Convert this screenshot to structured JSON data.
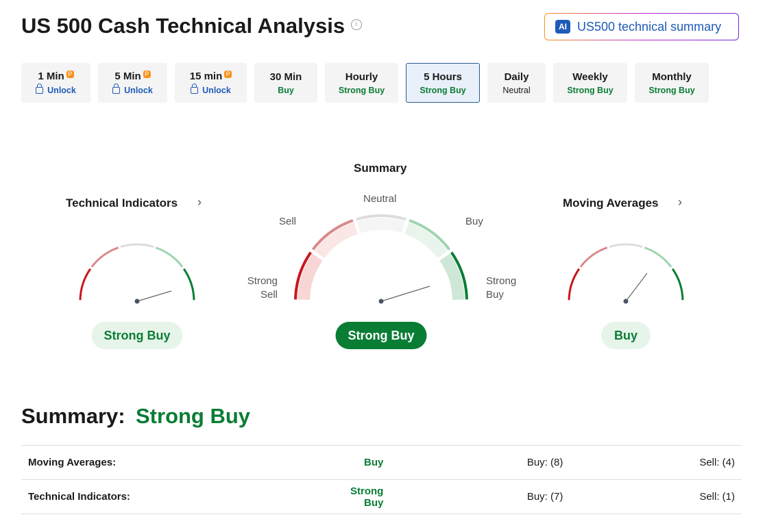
{
  "header": {
    "title": "US 500 Cash Technical Analysis",
    "ai_badge": "AI",
    "ai_button": "US500 technical summary"
  },
  "timeframes": [
    {
      "label": "1 Min",
      "status": "Unlock"
    },
    {
      "label": "5 Min",
      "status": "Unlock"
    },
    {
      "label": "15 min",
      "status": "Unlock"
    },
    {
      "label": "30 Min",
      "status": "Buy"
    },
    {
      "label": "Hourly",
      "status": "Strong Buy"
    },
    {
      "label": "5 Hours",
      "status": "Strong Buy"
    },
    {
      "label": "Daily",
      "status": "Neutral"
    },
    {
      "label": "Weekly",
      "status": "Strong Buy"
    },
    {
      "label": "Monthly",
      "status": "Strong Buy"
    }
  ],
  "gauges": {
    "technical_indicators": {
      "title": "Technical Indicators",
      "result": "Strong Buy"
    },
    "summary": {
      "title": "Summary",
      "result": "Strong Buy",
      "scale": {
        "strong_sell": "Strong Sell",
        "sell": "Sell",
        "neutral": "Neutral",
        "buy": "Buy",
        "strong_buy": "Strong Buy"
      }
    },
    "moving_averages": {
      "title": "Moving Averages",
      "result": "Buy"
    }
  },
  "summary": {
    "label": "Summary:",
    "result": "Strong Buy",
    "rows": [
      [
        "Moving Averages:",
        "Buy",
        "Buy: (8)",
        "Sell: (4)"
      ],
      [
        "Technical Indicators:",
        "Strong Buy",
        "Buy: (7)",
        "Sell: (1)"
      ]
    ]
  }
}
